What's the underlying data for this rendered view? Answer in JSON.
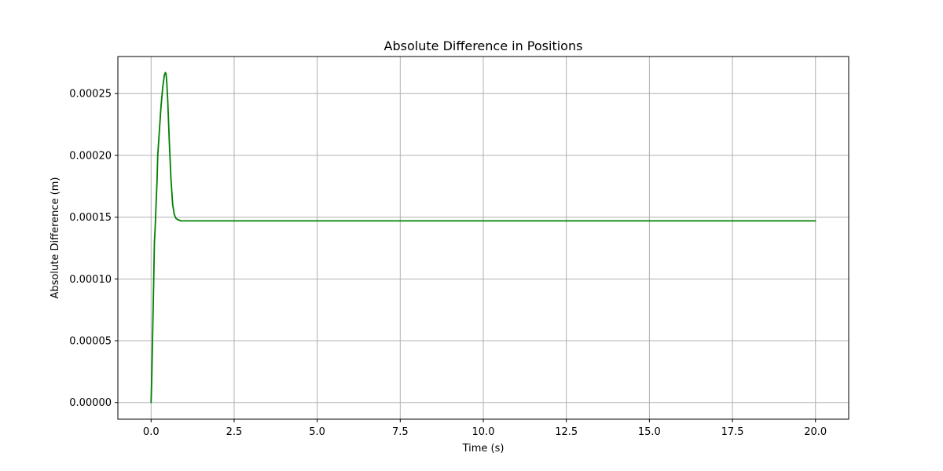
{
  "chart_data": {
    "type": "line",
    "title": "Absolute Difference in Positions",
    "xlabel": "Time (s)",
    "ylabel": "Absolute Difference (m)",
    "xlim": [
      -1.0,
      21.0
    ],
    "ylim": [
      -1.35e-05,
      0.00028
    ],
    "xticks": [
      0.0,
      2.5,
      5.0,
      7.5,
      10.0,
      12.5,
      15.0,
      17.5,
      20.0
    ],
    "xtick_labels": [
      "0.0",
      "2.5",
      "5.0",
      "7.5",
      "10.0",
      "12.5",
      "15.0",
      "17.5",
      "20.0"
    ],
    "yticks": [
      0.0,
      5e-05,
      0.0001,
      0.00015,
      0.0002,
      0.00025
    ],
    "ytick_labels": [
      "0.00000",
      "0.00005",
      "0.00010",
      "0.00015",
      "0.00020",
      "0.00025"
    ],
    "grid": true,
    "series": [
      {
        "color": "#008000",
        "x": [
          0.0,
          0.02,
          0.05,
          0.08,
          0.1,
          0.12,
          0.15,
          0.18,
          0.2,
          0.25,
          0.3,
          0.35,
          0.4,
          0.43,
          0.45,
          0.47,
          0.5,
          0.55,
          0.6,
          0.65,
          0.7,
          0.75,
          0.8,
          0.9,
          1.0,
          1.2,
          1.5,
          2.0,
          5.0,
          10.0,
          15.0,
          20.0
        ],
        "y": [
          0.0,
          2e-05,
          6e-05,
          0.0001,
          0.00013,
          0.00014,
          0.00016,
          0.00018,
          0.0002,
          0.00022,
          0.00024,
          0.000255,
          0.000265,
          0.000267,
          0.000266,
          0.00026,
          0.000245,
          0.00021,
          0.00018,
          0.00016,
          0.000152,
          0.000149,
          0.000148,
          0.000147,
          0.000147,
          0.000147,
          0.000147,
          0.000147,
          0.000147,
          0.000147,
          0.000147,
          0.000147
        ]
      }
    ]
  }
}
